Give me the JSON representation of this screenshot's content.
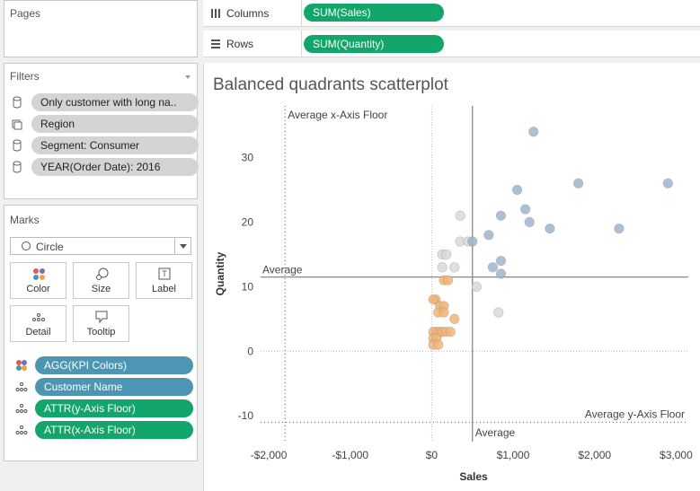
{
  "pages": {
    "title": "Pages"
  },
  "filters": {
    "title": "Filters",
    "items": [
      {
        "label": "Only customer with long na..",
        "icon": "database-icon"
      },
      {
        "label": "Region",
        "icon": "hierarchy-icon"
      },
      {
        "label": "Segment: Consumer",
        "icon": "database-icon"
      },
      {
        "label": "YEAR(Order Date): 2016",
        "icon": "database-icon"
      }
    ]
  },
  "marks": {
    "title": "Marks",
    "mark_type": "Circle",
    "buttons": [
      "Color",
      "Size",
      "Label",
      "Detail",
      "Tooltip"
    ],
    "fields": [
      {
        "label": "AGG(KPI Colors)",
        "icon": "color-dots-icon",
        "color": "#4c96b4"
      },
      {
        "label": "Customer Name",
        "icon": "detail-icon",
        "color": "#4c96b4"
      },
      {
        "label": "ATTR(y-Axis Floor)",
        "icon": "detail-icon",
        "color": "#12a56c"
      },
      {
        "label": "ATTR(x-Axis Floor)",
        "icon": "detail-icon",
        "color": "#12a56c"
      }
    ]
  },
  "shelves": {
    "columns_label": "Columns",
    "columns_pill": "SUM(Sales)",
    "rows_label": "Rows",
    "rows_pill": "SUM(Quantity)"
  },
  "chart_title": "Balanced quadrants scatterplot",
  "chart_data": {
    "type": "scatter",
    "xlabel": "Sales",
    "ylabel": "Quantity",
    "xlim": [
      -2100,
      3150
    ],
    "ylim": [
      -14,
      38
    ],
    "x_ticks": [
      -2000,
      -1000,
      0,
      1000,
      2000,
      3000
    ],
    "x_tick_labels": [
      "-$2,000",
      "-$1,000",
      "$0",
      "$1,000",
      "$2,000",
      "$3,000"
    ],
    "y_ticks": [
      -10,
      0,
      10,
      20,
      30
    ],
    "y_tick_labels": [
      "-10",
      "0",
      "10",
      "20",
      "30"
    ],
    "reference_lines": {
      "avg_x": 500,
      "avg_y": 11.5,
      "avg_label": "Average",
      "x_floor": -1800,
      "x_floor_label": "Average x-Axis Floor",
      "y_floor": -11,
      "y_floor_label": "Average y-Axis Floor",
      "zero_x": 0,
      "zero_y": 0
    },
    "colors": {
      "blue": "#9fb4cd",
      "orange": "#f2b477",
      "grey": "#d9d9d9"
    },
    "series": [
      {
        "color_key": "blue",
        "points": [
          [
            1250,
            34
          ],
          [
            1050,
            25
          ],
          [
            850,
            21
          ],
          [
            1150,
            22
          ],
          [
            1200,
            20
          ],
          [
            1450,
            19
          ],
          [
            1800,
            26
          ],
          [
            2300,
            19
          ],
          [
            2900,
            26
          ],
          [
            700,
            18
          ],
          [
            500,
            17
          ],
          [
            850,
            14
          ],
          [
            750,
            13
          ],
          [
            850,
            12
          ]
        ]
      },
      {
        "color_key": "grey",
        "points": [
          [
            350,
            21
          ],
          [
            350,
            17
          ],
          [
            450,
            17
          ],
          [
            130,
            15
          ],
          [
            180,
            15
          ],
          [
            130,
            13
          ],
          [
            280,
            13
          ],
          [
            550,
            10
          ],
          [
            820,
            6
          ]
        ]
      },
      {
        "color_key": "orange",
        "points": [
          [
            50,
            8
          ],
          [
            20,
            8
          ],
          [
            150,
            11
          ],
          [
            200,
            11
          ],
          [
            100,
            7
          ],
          [
            150,
            7
          ],
          [
            80,
            6
          ],
          [
            150,
            6
          ],
          [
            280,
            5
          ],
          [
            20,
            3
          ],
          [
            60,
            3
          ],
          [
            100,
            3
          ],
          [
            130,
            3
          ],
          [
            180,
            3
          ],
          [
            230,
            3
          ],
          [
            20,
            2
          ],
          [
            60,
            2
          ],
          [
            20,
            1
          ],
          [
            80,
            1
          ]
        ]
      }
    ]
  }
}
